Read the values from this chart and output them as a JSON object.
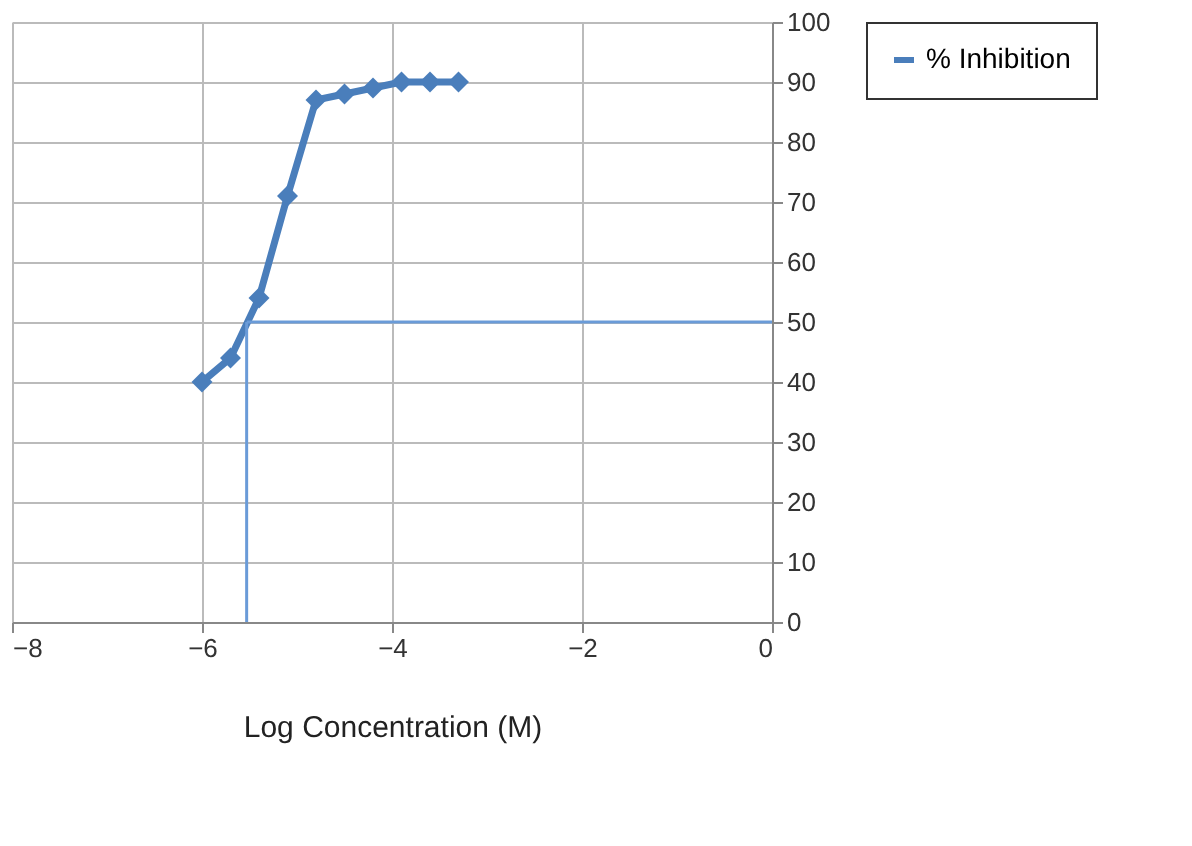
{
  "chart_data": {
    "type": "line",
    "xlabel": "Log Concentration (M)",
    "x": [
      -6,
      -5.7,
      -5.4,
      -5.1,
      -4.8,
      -4.5,
      -4.2,
      -3.9,
      -3.6,
      -3.3
    ],
    "series": [
      {
        "name": "% Inhibition",
        "color": "#4a7ebb",
        "values": [
          40,
          44,
          54,
          71,
          87,
          88,
          89,
          90,
          90,
          90
        ],
        "marker": "diamond"
      }
    ],
    "ref_lines": [
      {
        "axis": "y",
        "value": 50,
        "color": "#6a9bd8"
      },
      {
        "axis": "x",
        "value": -5.53,
        "color": "#6a9bd8"
      }
    ],
    "xlim": [
      -8,
      0
    ],
    "xticks": [
      -8,
      -6,
      -4,
      -2,
      0
    ],
    "ylim": [
      0,
      100
    ],
    "yticks": [
      0,
      10,
      20,
      30,
      40,
      50,
      60,
      70,
      80,
      90,
      100
    ],
    "grid": true,
    "legend": "right"
  }
}
